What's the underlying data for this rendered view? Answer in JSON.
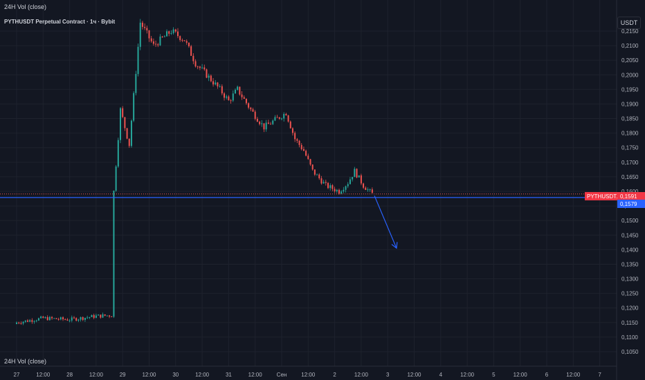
{
  "header": {
    "indicator_top": "24H Vol (close)",
    "symbol_title": "PYTHUSDT Perpetual Contract · 1ч · Bybit",
    "indicator_bottom": "24H Vol (close)",
    "currency_button": "USDT"
  },
  "colors": {
    "background": "#131722",
    "up": "#26a69a",
    "down": "#ef5350",
    "support_line": "#2962ff",
    "price_label": "#f23645",
    "arrow": "#2962ff"
  },
  "price_axis": {
    "ticks": [
      "0,2150",
      "0,2100",
      "0,2050",
      "0,2000",
      "0,1950",
      "0,1900",
      "0,1850",
      "0,1800",
      "0,1750",
      "0,1700",
      "0,1650",
      "0,1600",
      "0,1550",
      "0,1500",
      "0,1450",
      "0,1400",
      "0,1350",
      "0,1300",
      "0,1250",
      "0,1200",
      "0,1150",
      "0,1100",
      "0,1050"
    ]
  },
  "time_axis": {
    "ticks": [
      "27",
      "12:00",
      "28",
      "12:00",
      "29",
      "12:00",
      "30",
      "12:00",
      "31",
      "12:00",
      "Сен",
      "12:00",
      "2",
      "12:00",
      "3",
      "12:00",
      "4",
      "12:00",
      "5",
      "12:00",
      "6",
      "12:00",
      "7"
    ]
  },
  "labels": {
    "symbol_tag": "PYTHUSDT.P",
    "last_price": "0,1591",
    "support_price": "0,1579"
  },
  "chart_data": {
    "type": "candlestick",
    "title": "PYTHUSDT Perpetual Contract · 1ч · Bybit",
    "ylim": [
      0.1045,
      0.2195
    ],
    "support_level": 0.1579,
    "last_price": 0.1591,
    "projection_arrow": {
      "from": {
        "x": "Сен 2 18:00",
        "y": 0.1585
      },
      "to": {
        "x": "Сен 3 04:00",
        "y": 0.1405
      }
    },
    "close_path": [
      [
        "08-27 00:00",
        0.115
      ],
      [
        "08-27 12:00",
        0.1165
      ],
      [
        "08-28 00:00",
        0.116
      ],
      [
        "08-28 12:00",
        0.1172
      ],
      [
        "08-28 19:00",
        0.1175
      ],
      [
        "08-28 20:00",
        0.16
      ],
      [
        "08-28 23:00",
        0.188
      ],
      [
        "08-29 03:00",
        0.176
      ],
      [
        "08-29 08:00",
        0.218
      ],
      [
        "08-29 14:00",
        0.21
      ],
      [
        "08-29 22:00",
        0.215
      ],
      [
        "08-30 04:00",
        0.212
      ],
      [
        "08-30 09:00",
        0.204
      ],
      [
        "08-30 14:00",
        0.2
      ],
      [
        "08-30 20:00",
        0.195
      ],
      [
        "08-31 00:00",
        0.191
      ],
      [
        "08-31 04:00",
        0.195
      ],
      [
        "08-31 10:00",
        0.188
      ],
      [
        "08-31 16:00",
        0.182
      ],
      [
        "08-31 22:00",
        0.185
      ],
      [
        "09-01 02:00",
        0.187
      ],
      [
        "09-01 06:00",
        0.178
      ],
      [
        "09-01 10:00",
        0.174
      ],
      [
        "09-01 14:00",
        0.167
      ],
      [
        "09-01 20:00",
        0.162
      ],
      [
        "09-02 02:00",
        0.16
      ],
      [
        "09-02 06:00",
        0.163
      ],
      [
        "09-02 09:00",
        0.167
      ],
      [
        "09-02 13:00",
        0.162
      ],
      [
        "09-02 17:00",
        0.1591
      ]
    ]
  }
}
